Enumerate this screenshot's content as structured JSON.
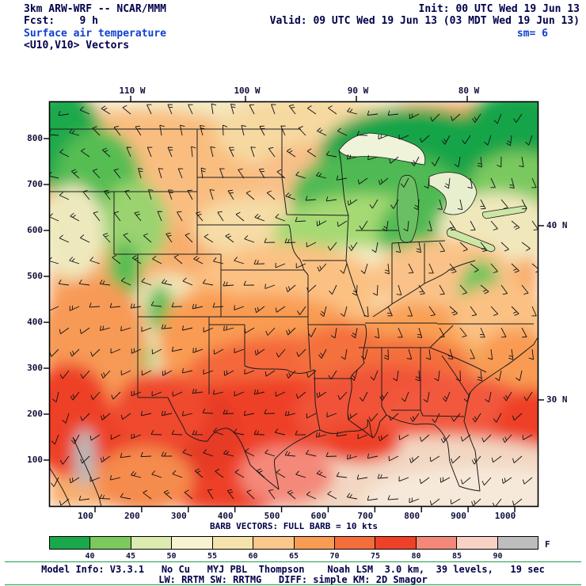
{
  "header": {
    "model": "3km ARW-WRF -- NCAR/MMM",
    "init": "Init: 00 UTC Wed 19 Jun 13",
    "fcst": "Fcst:    9 h",
    "valid": "Valid: 09 UTC Wed 19 Jun 13 (03 MDT Wed 19 Jun 13)",
    "field": "Surface air temperature",
    "smooth": "sm= 6",
    "vectors": "<U10,V10> Vectors"
  },
  "axes": {
    "top": [
      "110 W",
      "100 W",
      "90 W",
      "80 W"
    ],
    "right": [
      "40 N",
      "30 N"
    ],
    "left": [
      "800",
      "700",
      "600",
      "500",
      "400",
      "300",
      "200",
      "100"
    ],
    "bottom": [
      "100",
      "200",
      "300",
      "400",
      "500",
      "600",
      "700",
      "800",
      "900",
      "1000"
    ]
  },
  "barb_caption": "BARB VECTORS: FULL BARB = 10 kts",
  "colorbar": {
    "unit": "F",
    "labels": [
      "40",
      "45",
      "50",
      "55",
      "60",
      "65",
      "70",
      "75",
      "80",
      "85",
      "90"
    ],
    "colors": [
      "#19a84b",
      "#7cc95d",
      "#dcebaf",
      "#f7f2d0",
      "#f6e3ac",
      "#fbc78a",
      "#f99c53",
      "#f46e3b",
      "#ee4127",
      "#f48878",
      "#f9d2c6",
      "#bdbdbd"
    ]
  },
  "footer": {
    "line1": "Model Info: V3.3.1   No Cu   MYJ PBL  Thompson    Noah LSM  3.0 km,  39 levels,   19 sec",
    "line2": "LW: RRTM SW: RRTMG   DIFF: simple KM: 2D Smagor"
  },
  "chart_data": {
    "type": "heatmap",
    "title": "Surface air temperature",
    "subtitle": "<U10,V10> Vectors",
    "model": "3km ARW-WRF -- NCAR/MMM",
    "init": "00 UTC Wed 19 Jun 13",
    "forecast_hour": 9,
    "valid": "09 UTC Wed 19 Jun 13 (03 MDT Wed 19 Jun 13)",
    "smoothing": 6,
    "unit": "F",
    "colorbar_levels": [
      40,
      45,
      50,
      55,
      60,
      65,
      70,
      75,
      80,
      85,
      90
    ],
    "colorbar_colors": [
      "#19a84b",
      "#7cc95d",
      "#dcebaf",
      "#f7f2d0",
      "#f6e3ac",
      "#fbc78a",
      "#f99c53",
      "#f46e3b",
      "#ee4127",
      "#f48878",
      "#f9d2c6",
      "#bdbdbd"
    ],
    "x_ticks": [
      100,
      200,
      300,
      400,
      500,
      600,
      700,
      800,
      900,
      1000
    ],
    "y_ticks": [
      100,
      200,
      300,
      400,
      500,
      600,
      700,
      800
    ],
    "lon_labels": [
      "110 W",
      "100 W",
      "90 W",
      "80 W"
    ],
    "lat_labels": [
      "40 N",
      "30 N"
    ],
    "barb_legend": "FULL BARB = 10 kts",
    "regions": [
      {
        "area": "Northern Rockies / NW corner",
        "temp_F": "40-50 (greens)"
      },
      {
        "area": "Great Lakes / Upper Midwest / Northeast",
        "temp_F": "40-55 (greens to cream)"
      },
      {
        "area": "Northern Plains (MT, ND, SD, NE)",
        "temp_F": "55-65 (cream to peach)"
      },
      {
        "area": "Central Plains (KS, OK)",
        "temp_F": "70-75 (red-orange)"
      },
      {
        "area": "Texas, Deep South, Gulf Coast states",
        "temp_F": "75-85 (red)"
      },
      {
        "area": "Gulf of Mexico water",
        "temp_F": "85-90 (pale pink)"
      },
      {
        "area": "Interior Mexico spots",
        "temp_F": ">90 (gray)"
      }
    ]
  }
}
